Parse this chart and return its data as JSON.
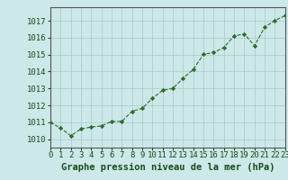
{
  "x": [
    0,
    1,
    2,
    3,
    4,
    5,
    6,
    7,
    8,
    9,
    10,
    11,
    12,
    13,
    14,
    15,
    16,
    17,
    18,
    19,
    20,
    21,
    22,
    23
  ],
  "y": [
    1011.0,
    1010.65,
    1010.2,
    1010.6,
    1010.72,
    1010.78,
    1011.05,
    1011.05,
    1011.65,
    1011.82,
    1012.42,
    1012.88,
    1013.0,
    1013.6,
    1014.12,
    1015.02,
    1015.12,
    1015.42,
    1016.1,
    1016.22,
    1015.52,
    1016.62,
    1017.02,
    1017.3
  ],
  "line_color": "#2d6a2d",
  "marker_color": "#2d6a2d",
  "bg_color": "#cce8e8",
  "plot_bg_color": "#cce8e8",
  "grid_color": "#adc8c8",
  "axis_label_color": "#1a4a1a",
  "tick_color": "#1a4a1a",
  "xlabel": "Graphe pression niveau de la mer (hPa)",
  "ylim": [
    1009.5,
    1017.8
  ],
  "yticks": [
    1010,
    1011,
    1012,
    1013,
    1014,
    1015,
    1016,
    1017
  ],
  "xticks": [
    0,
    1,
    2,
    3,
    4,
    5,
    6,
    7,
    8,
    9,
    10,
    11,
    12,
    13,
    14,
    15,
    16,
    17,
    18,
    19,
    20,
    21,
    22,
    23
  ],
  "tick_fontsize": 6.5,
  "xlabel_fontsize": 7.5
}
